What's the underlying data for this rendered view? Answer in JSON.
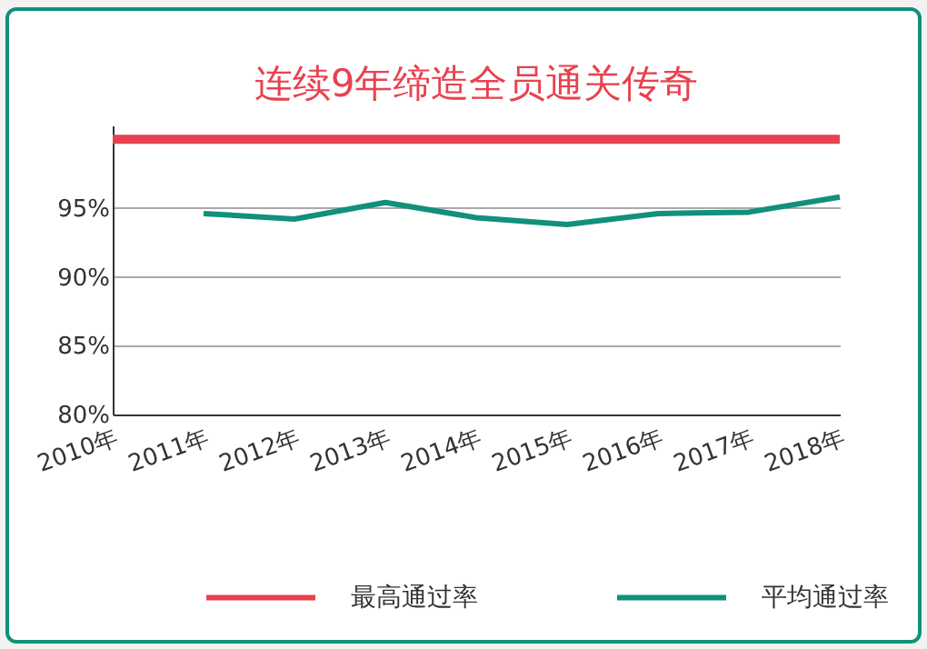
{
  "chart_data": {
    "type": "line",
    "title": "连续9年缔造全员通关传奇",
    "categories": [
      "2010年",
      "2011年",
      "2012年",
      "2013年",
      "2014年",
      "2015年",
      "2016年",
      "2017年",
      "2018年"
    ],
    "series": [
      {
        "name": "最高通过率",
        "color": "#e8414f",
        "values": [
          100,
          100,
          100,
          100,
          100,
          100,
          100,
          100,
          100
        ]
      },
      {
        "name": "平均通过率",
        "color": "#11907a",
        "values": [
          null,
          94.6,
          94.2,
          95.4,
          94.3,
          93.8,
          94.6,
          94.7,
          95.8
        ]
      }
    ],
    "ylim": [
      80,
      101
    ],
    "yticks": [
      {
        "value": 80,
        "label": "80%"
      },
      {
        "value": 85,
        "label": "85%"
      },
      {
        "value": 90,
        "label": "90%"
      },
      {
        "value": 95,
        "label": "95%"
      }
    ],
    "grid": "y",
    "legend": "bottom",
    "marker": "none",
    "line_style": "solid"
  }
}
